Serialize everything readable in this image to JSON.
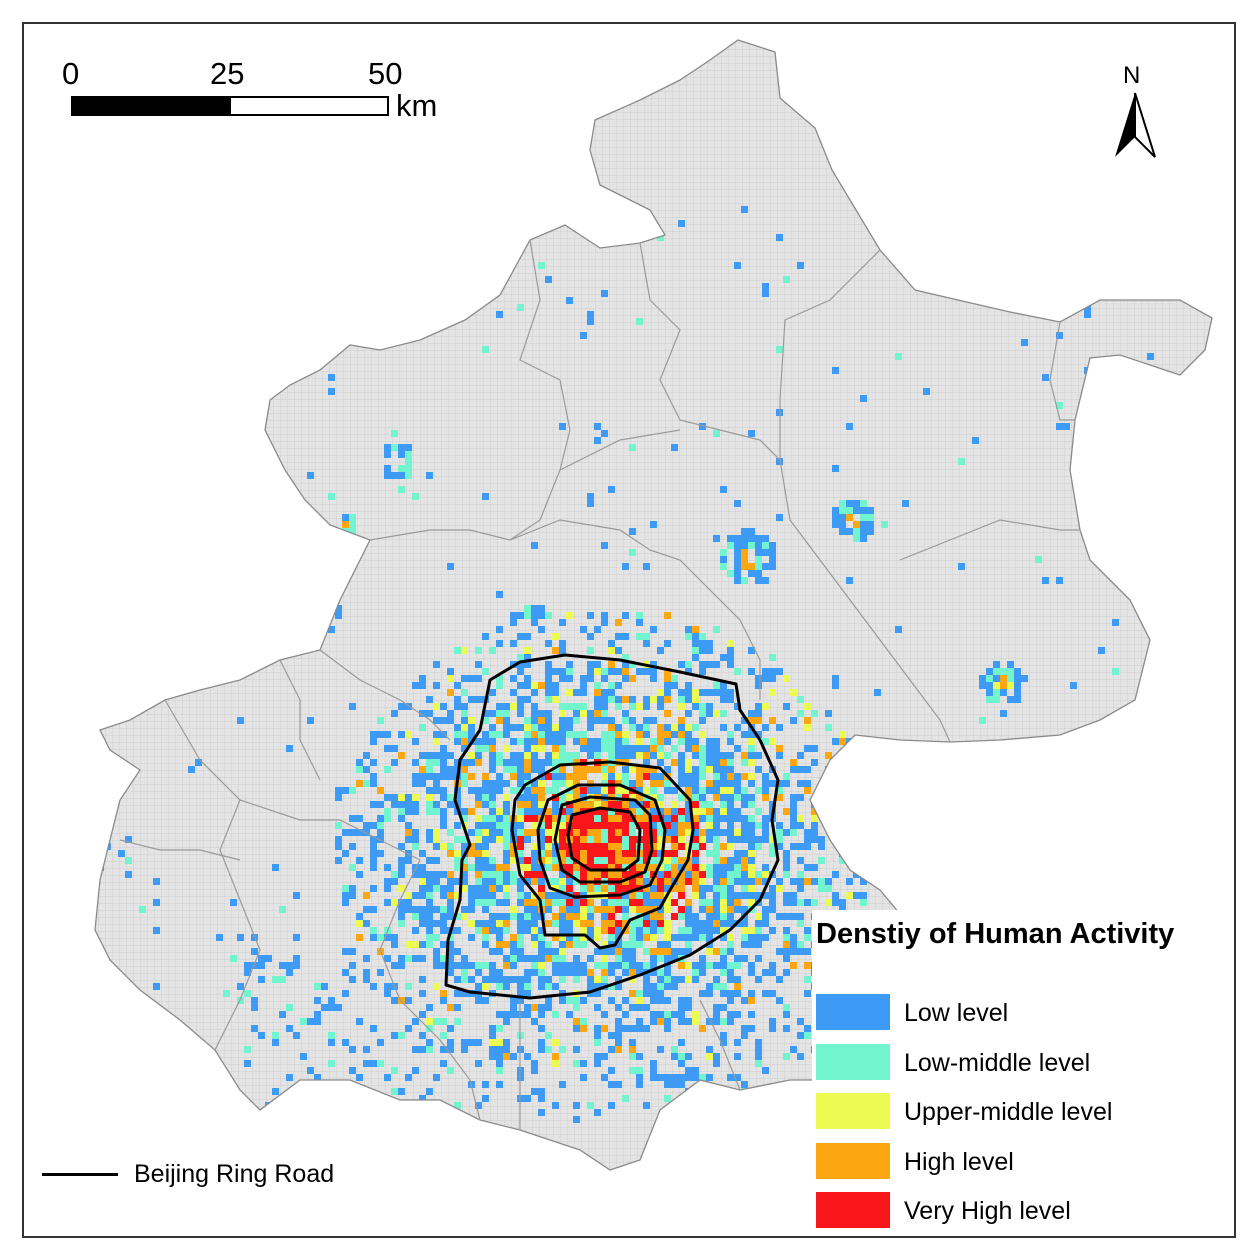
{
  "scale_bar": {
    "ticks": [
      "0",
      "25",
      "50"
    ],
    "unit": "km"
  },
  "north_arrow": {
    "label": "N",
    "icon": "north-arrow-icon"
  },
  "legend": {
    "title": "Denstiy of Human Activity",
    "items": [
      {
        "label": "Low level",
        "color": "#3d9bf5"
      },
      {
        "label": "Low-middle level",
        "color": "#72f5cf"
      },
      {
        "label": "Upper-middle level",
        "color": "#ecfb52"
      },
      {
        "label": "High level",
        "color": "#fca712"
      },
      {
        "label": "Very High level",
        "color": "#f8161a"
      }
    ]
  },
  "road_legend": {
    "label": "Beijing Ring Road",
    "color": "#000000"
  },
  "colors": {
    "land": "#e4e4e4",
    "grid": "#c8c8c8",
    "district_boundary": "#9a9a9a",
    "background": "#ffffff"
  }
}
